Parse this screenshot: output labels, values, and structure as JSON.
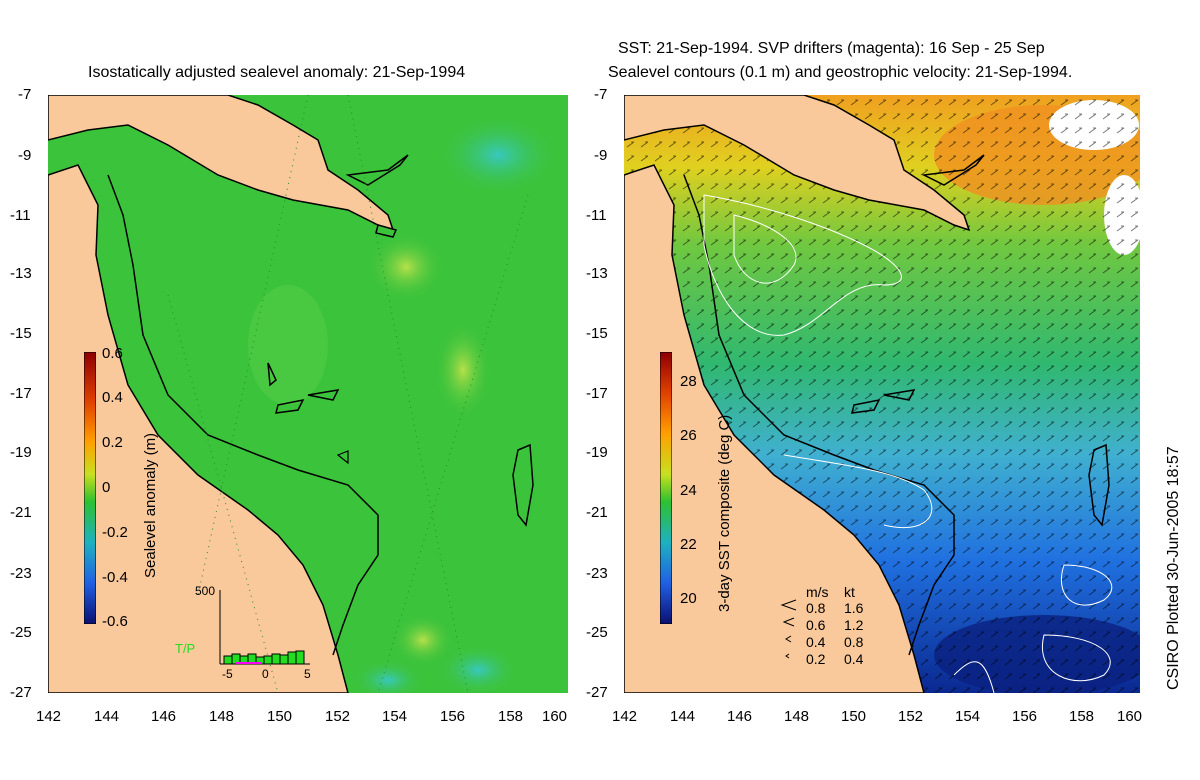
{
  "left_title": "Isostatically adjusted sealevel anomaly: 21-Sep-1994",
  "right_title_1": "SST: 21-Sep-1994. SVP drifters (magenta): 16 Sep - 25 Sep",
  "right_title_2": "Sealevel contours (0.1 m) and geostrophic velocity: 21-Sep-1994.",
  "side_credit": "CSIRO Plotted 30-Jun-2005 18:57",
  "lat_ticks": [
    "-7",
    "-9",
    "-11",
    "-13",
    "-15",
    "-17",
    "-19",
    "-21",
    "-23",
    "-25",
    "-27"
  ],
  "lon_ticks": [
    "142",
    "144",
    "146",
    "148",
    "150",
    "152",
    "154",
    "156",
    "158",
    "160"
  ],
  "left_colorbar": {
    "label": "Sealevel anomaly (m)",
    "ticks": [
      "0.6",
      "0.4",
      "0.2",
      "0",
      "-0.2",
      "-0.4",
      "-0.6"
    ]
  },
  "right_colorbar": {
    "label": "3-day SST composite (deg C)",
    "ticks": [
      "28",
      "26",
      "24",
      "22",
      "20"
    ]
  },
  "tp_inset": {
    "label": "T/P",
    "y_max": "500",
    "x_ticks": [
      "-5",
      "0",
      "5"
    ],
    "bar_color": "#22dd22",
    "marker_color": "#ff00ff"
  },
  "velocity_legend": {
    "header_ms": "m/s",
    "header_kt": "kt",
    "rows": [
      [
        "0.8",
        "1.6"
      ],
      [
        "0.6",
        "1.2"
      ],
      [
        "0.4",
        "0.8"
      ],
      [
        "0.2",
        "0.4"
      ]
    ]
  },
  "colors": {
    "land": "#f9c89b",
    "sea_left": "#3cc33c",
    "coastline": "#000000",
    "contour": "#ffffff"
  }
}
